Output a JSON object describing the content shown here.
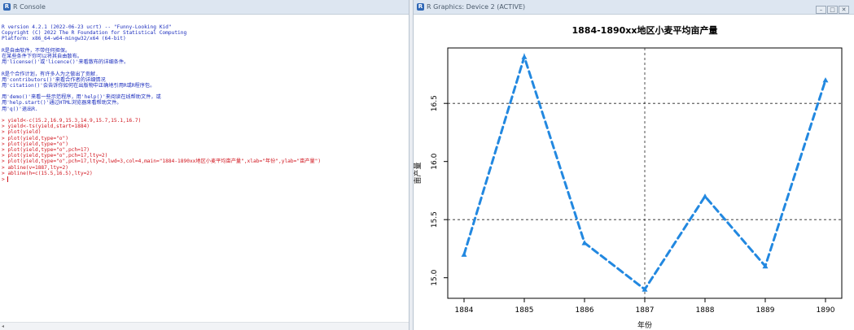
{
  "console": {
    "title": "R Console",
    "lines": [
      {
        "text": "R version 4.2.1 (2022-06-23 ucrt) -- \"Funny-Looking Kid\"",
        "color": "blue"
      },
      {
        "text": "Copyright (C) 2022 The R Foundation for Statistical Computing",
        "color": "blue"
      },
      {
        "text": "Platform: x86_64-w64-mingw32/x64 (64-bit)",
        "color": "blue"
      },
      {
        "text": "",
        "color": "blue"
      },
      {
        "text": "R是自由软件，不带任何担保。",
        "color": "blue"
      },
      {
        "text": "在某些条件下你可以将其自由散布。",
        "color": "blue"
      },
      {
        "text": "用'license()'或'licence()'来看散布的详细条件。",
        "color": "blue"
      },
      {
        "text": "",
        "color": "blue"
      },
      {
        "text": "R是个合作计划，有许多人为之做出了贡献.",
        "color": "blue"
      },
      {
        "text": "用'contributors()'来看合作者的详细情况",
        "color": "blue"
      },
      {
        "text": "用'citation()'会告诉你如何在出版物中正确地引用R或R程序包。",
        "color": "blue"
      },
      {
        "text": "",
        "color": "blue"
      },
      {
        "text": "用'demo()'来看一些示范程序，用'help()'来阅读在线帮助文件，或",
        "color": "blue"
      },
      {
        "text": "用'help.start()'通过HTML浏览器来看帮助文件。",
        "color": "blue"
      },
      {
        "text": "用'q()'退出R.",
        "color": "blue"
      },
      {
        "text": "",
        "color": "blue"
      },
      {
        "text": "> yield<-c(15.2,16.9,15.3,14.9,15.7,15.1,16.7)",
        "color": "red"
      },
      {
        "text": "> yield<-ts(yield,start=1884)",
        "color": "red"
      },
      {
        "text": "> plot(yield)",
        "color": "red"
      },
      {
        "text": "> plot(yield,type=\"o\")",
        "color": "red"
      },
      {
        "text": "> plot(yield,type=\"o\")",
        "color": "red"
      },
      {
        "text": "> plot(yield,type=\"o\",pch=17)",
        "color": "red"
      },
      {
        "text": "> plot(yield,type=\"o\",pch=17,lty=2)",
        "color": "red"
      },
      {
        "text": "> plot(yield,type=\"o\",pch=17,lty=2,lwd=3,col=4,main=\"1884-1890xx地区小麦平均亩产量\",xlab=\"年份\",ylab=\"亩产量\")",
        "color": "red"
      },
      {
        "text": "> abline(v=1887,lty=2)",
        "color": "red"
      },
      {
        "text": "> abline(h=c(15.5,16.5),lty=2)",
        "color": "red"
      }
    ],
    "prompt": "> ",
    "scroll_arrow": "◂"
  },
  "graphics": {
    "title": "R Graphics: Device 2 (ACTIVE)",
    "buttons": {
      "minimize": "–",
      "maximize": "□",
      "close": "✕"
    }
  },
  "chart_data": {
    "type": "line",
    "title": "1884-1890xx地区小麦平均亩产量",
    "xlabel": "年份",
    "ylabel": "亩产量",
    "x": [
      1884,
      1885,
      1886,
      1887,
      1888,
      1889,
      1890
    ],
    "values": [
      15.2,
      16.9,
      15.3,
      14.9,
      15.7,
      15.1,
      16.7
    ],
    "xlim": [
      1884,
      1890
    ],
    "ylim": [
      14.9,
      16.9
    ],
    "xticks": [
      "1884",
      "1885",
      "1886",
      "1887",
      "1888",
      "1889",
      "1890"
    ],
    "yticks": [
      "15.0",
      "15.5",
      "16.0",
      "16.5"
    ],
    "hlines": [
      15.5,
      16.5
    ],
    "vlines": [
      1887
    ],
    "series_color": "#2288e0",
    "line_style": "dashed",
    "marker": "triangle"
  }
}
